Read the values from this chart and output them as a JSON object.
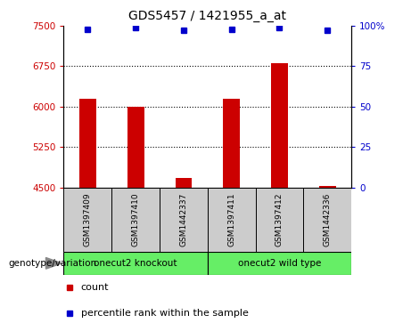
{
  "title": "GDS5457 / 1421955_a_at",
  "samples": [
    "GSM1397409",
    "GSM1397410",
    "GSM1442337",
    "GSM1397411",
    "GSM1397412",
    "GSM1442336"
  ],
  "bar_values": [
    6150,
    6000,
    4680,
    6150,
    6800,
    4530
  ],
  "percentile_values": [
    98,
    99,
    97,
    98,
    99,
    97
  ],
  "bar_color": "#cc0000",
  "dot_color": "#0000cc",
  "ylim_left": [
    4500,
    7500
  ],
  "ylim_right": [
    0,
    100
  ],
  "yticks_left": [
    4500,
    5250,
    6000,
    6750,
    7500
  ],
  "yticks_right": [
    0,
    25,
    50,
    75,
    100
  ],
  "ytick_labels_left": [
    "4500",
    "5250",
    "6000",
    "6750",
    "7500"
  ],
  "ytick_labels_right": [
    "0",
    "25",
    "50",
    "75",
    "100%"
  ],
  "groups": [
    {
      "label": "onecut2 knockout",
      "color": "#66ee66"
    },
    {
      "label": "onecut2 wild type",
      "color": "#66ee66"
    }
  ],
  "group_label": "genotype/variation",
  "legend_items": [
    {
      "label": "count",
      "color": "#cc0000"
    },
    {
      "label": "percentile rank within the sample",
      "color": "#0000cc"
    }
  ],
  "bar_width": 0.35
}
